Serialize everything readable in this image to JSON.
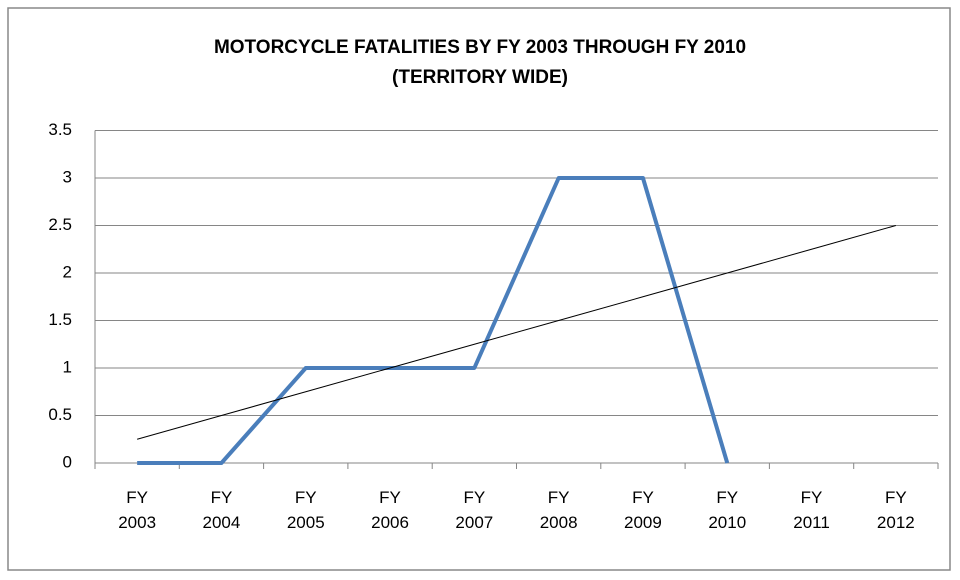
{
  "chart_data": {
    "type": "line",
    "title": [
      "MOTORCYCLE FATALITIES BY FY 2003 THROUGH FY 2010",
      "(TERRITORY WIDE)"
    ],
    "categories": [
      "FY 2003",
      "FY 2004",
      "FY 2005",
      "FY 2006",
      "FY 2007",
      "FY 2008",
      "FY 2009",
      "FY 2010",
      "FY 2011",
      "FY 2012"
    ],
    "series": [
      {
        "color": "#4a7ebb",
        "values": [
          0,
          0,
          1,
          1,
          1,
          3,
          3,
          0,
          null,
          null
        ]
      },
      {
        "color": "#000000",
        "values": [
          0.25,
          0.5,
          0.75,
          1,
          1.25,
          1.5,
          1.75,
          2,
          2.25,
          2.5
        ]
      }
    ],
    "ylim": [
      0,
      3.5
    ],
    "yticks": [
      0,
      0.5,
      1,
      1.5,
      2,
      2.5,
      3,
      3.5
    ],
    "grid": true
  }
}
